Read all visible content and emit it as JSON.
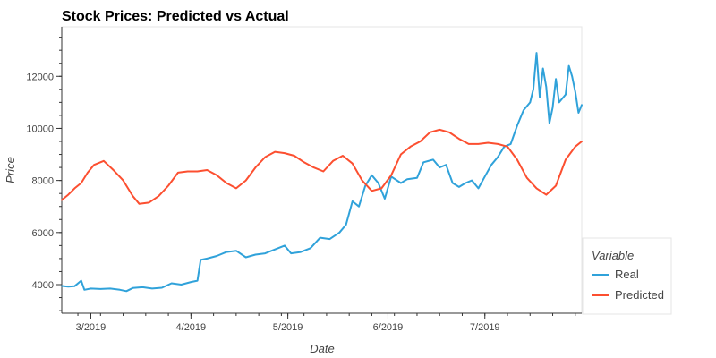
{
  "chart_data": {
    "type": "line",
    "title": "Stock Prices: Predicted vs Actual",
    "xlabel": "Date",
    "ylabel": "Price",
    "x_range": [
      "2019-02-20",
      "2019-07-31"
    ],
    "y_range": [
      2900,
      13900
    ],
    "x_ticks": [
      {
        "date": "2019-03-01",
        "label": "3/2019"
      },
      {
        "date": "2019-04-01",
        "label": "4/2019"
      },
      {
        "date": "2019-05-01",
        "label": "5/2019"
      },
      {
        "date": "2019-06-01",
        "label": "6/2019"
      },
      {
        "date": "2019-07-01",
        "label": "7/2019"
      }
    ],
    "y_ticks": [
      {
        "value": 4000,
        "label": "4000"
      },
      {
        "value": 6000,
        "label": "6000"
      },
      {
        "value": 8000,
        "label": "8000"
      },
      {
        "value": 10000,
        "label": "10000"
      },
      {
        "value": 12000,
        "label": "12000"
      }
    ],
    "grid": false,
    "legend": {
      "title": "Variable",
      "position": "outside-right-bottom"
    },
    "colors": {
      "Real": "#30a2da",
      "Predicted": "#fc4f30"
    },
    "series": [
      {
        "name": "Real",
        "points": [
          [
            "2019-02-20",
            3950
          ],
          [
            "2019-02-22",
            3920
          ],
          [
            "2019-02-24",
            3940
          ],
          [
            "2019-02-26",
            4150
          ],
          [
            "2019-02-27",
            3800
          ],
          [
            "2019-03-01",
            3850
          ],
          [
            "2019-03-04",
            3830
          ],
          [
            "2019-03-07",
            3850
          ],
          [
            "2019-03-10",
            3800
          ],
          [
            "2019-03-12",
            3750
          ],
          [
            "2019-03-14",
            3870
          ],
          [
            "2019-03-17",
            3900
          ],
          [
            "2019-03-20",
            3850
          ],
          [
            "2019-03-23",
            3880
          ],
          [
            "2019-03-26",
            4050
          ],
          [
            "2019-03-29",
            4000
          ],
          [
            "2019-04-01",
            4100
          ],
          [
            "2019-04-03",
            4150
          ],
          [
            "2019-04-04",
            4950
          ],
          [
            "2019-04-06",
            5000
          ],
          [
            "2019-04-09",
            5100
          ],
          [
            "2019-04-12",
            5250
          ],
          [
            "2019-04-15",
            5300
          ],
          [
            "2019-04-18",
            5050
          ],
          [
            "2019-04-21",
            5150
          ],
          [
            "2019-04-24",
            5200
          ],
          [
            "2019-04-27",
            5350
          ],
          [
            "2019-04-30",
            5500
          ],
          [
            "2019-05-02",
            5200
          ],
          [
            "2019-05-05",
            5250
          ],
          [
            "2019-05-08",
            5400
          ],
          [
            "2019-05-11",
            5800
          ],
          [
            "2019-05-14",
            5750
          ],
          [
            "2019-05-17",
            6000
          ],
          [
            "2019-05-19",
            6300
          ],
          [
            "2019-05-21",
            7200
          ],
          [
            "2019-05-23",
            7000
          ],
          [
            "2019-05-25",
            7800
          ],
          [
            "2019-05-27",
            8200
          ],
          [
            "2019-05-29",
            7900
          ],
          [
            "2019-05-31",
            7300
          ],
          [
            "2019-06-02",
            8150
          ],
          [
            "2019-06-05",
            7900
          ],
          [
            "2019-06-07",
            8050
          ],
          [
            "2019-06-10",
            8100
          ],
          [
            "2019-06-12",
            8700
          ],
          [
            "2019-06-15",
            8800
          ],
          [
            "2019-06-17",
            8500
          ],
          [
            "2019-06-19",
            8600
          ],
          [
            "2019-06-21",
            7900
          ],
          [
            "2019-06-23",
            7750
          ],
          [
            "2019-06-25",
            7900
          ],
          [
            "2019-06-27",
            8000
          ],
          [
            "2019-06-29",
            7700
          ],
          [
            "2019-07-01",
            8150
          ],
          [
            "2019-07-03",
            8600
          ],
          [
            "2019-07-05",
            8900
          ],
          [
            "2019-07-07",
            9300
          ],
          [
            "2019-07-09",
            9400
          ],
          [
            "2019-07-11",
            10100
          ],
          [
            "2019-07-13",
            10700
          ],
          [
            "2019-07-15",
            11000
          ],
          [
            "2019-07-16",
            11500
          ],
          [
            "2019-07-17",
            12900
          ],
          [
            "2019-07-18",
            11200
          ],
          [
            "2019-07-19",
            12300
          ],
          [
            "2019-07-20",
            11600
          ],
          [
            "2019-07-21",
            10200
          ],
          [
            "2019-07-22",
            10800
          ],
          [
            "2019-07-23",
            11900
          ],
          [
            "2019-07-24",
            11000
          ],
          [
            "2019-07-26",
            11300
          ],
          [
            "2019-07-27",
            12400
          ],
          [
            "2019-07-28",
            12000
          ],
          [
            "2019-07-29",
            11400
          ],
          [
            "2019-07-30",
            10600
          ],
          [
            "2019-07-31",
            10900
          ]
        ]
      },
      {
        "name": "Predicted",
        "points": [
          [
            "2019-02-20",
            7250
          ],
          [
            "2019-02-22",
            7450
          ],
          [
            "2019-02-24",
            7700
          ],
          [
            "2019-02-26",
            7900
          ],
          [
            "2019-02-28",
            8300
          ],
          [
            "2019-03-02",
            8600
          ],
          [
            "2019-03-05",
            8750
          ],
          [
            "2019-03-08",
            8400
          ],
          [
            "2019-03-11",
            8000
          ],
          [
            "2019-03-14",
            7400
          ],
          [
            "2019-03-16",
            7100
          ],
          [
            "2019-03-19",
            7150
          ],
          [
            "2019-03-22",
            7400
          ],
          [
            "2019-03-25",
            7800
          ],
          [
            "2019-03-28",
            8300
          ],
          [
            "2019-03-31",
            8350
          ],
          [
            "2019-04-03",
            8350
          ],
          [
            "2019-04-06",
            8400
          ],
          [
            "2019-04-09",
            8200
          ],
          [
            "2019-04-12",
            7900
          ],
          [
            "2019-04-15",
            7700
          ],
          [
            "2019-04-18",
            8000
          ],
          [
            "2019-04-21",
            8500
          ],
          [
            "2019-04-24",
            8900
          ],
          [
            "2019-04-27",
            9100
          ],
          [
            "2019-04-30",
            9050
          ],
          [
            "2019-05-03",
            8950
          ],
          [
            "2019-05-06",
            8700
          ],
          [
            "2019-05-09",
            8500
          ],
          [
            "2019-05-12",
            8350
          ],
          [
            "2019-05-15",
            8750
          ],
          [
            "2019-05-18",
            8950
          ],
          [
            "2019-05-21",
            8650
          ],
          [
            "2019-05-24",
            8000
          ],
          [
            "2019-05-27",
            7600
          ],
          [
            "2019-05-30",
            7700
          ],
          [
            "2019-06-02",
            8200
          ],
          [
            "2019-06-05",
            9000
          ],
          [
            "2019-06-08",
            9300
          ],
          [
            "2019-06-11",
            9500
          ],
          [
            "2019-06-14",
            9850
          ],
          [
            "2019-06-17",
            9950
          ],
          [
            "2019-06-20",
            9850
          ],
          [
            "2019-06-23",
            9600
          ],
          [
            "2019-06-26",
            9400
          ],
          [
            "2019-06-29",
            9400
          ],
          [
            "2019-07-02",
            9450
          ],
          [
            "2019-07-05",
            9400
          ],
          [
            "2019-07-08",
            9300
          ],
          [
            "2019-07-11",
            8800
          ],
          [
            "2019-07-14",
            8100
          ],
          [
            "2019-07-17",
            7700
          ],
          [
            "2019-07-20",
            7450
          ],
          [
            "2019-07-23",
            7800
          ],
          [
            "2019-07-26",
            8800
          ],
          [
            "2019-07-29",
            9300
          ],
          [
            "2019-07-31",
            9500
          ]
        ]
      }
    ]
  }
}
